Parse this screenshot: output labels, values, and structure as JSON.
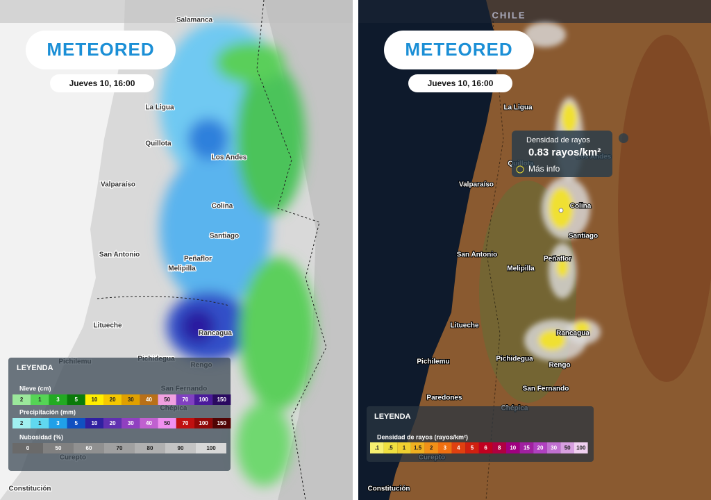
{
  "left": {
    "logo": "METEORED",
    "date": "Jueves 10, 16:00",
    "places": [
      "Salamanca",
      "La Ligua",
      "Quillota",
      "Los Andes",
      "Valparaíso",
      "Colina",
      "Santiago",
      "San Antonio",
      "Peñaflor",
      "Melipilla",
      "Litueche",
      "Rancagua",
      "Pichilemu",
      "Pichidegua",
      "Rengo",
      "San Fernando",
      "Chépica",
      "Curepto",
      "Constitución"
    ],
    "legend": {
      "title": "LEYENDA",
      "groups": [
        {
          "name": "Nieve (cm)",
          "items": [
            {
              "label": "2",
              "color": "#9be89b"
            },
            {
              "label": "1",
              "color": "#55d455"
            },
            {
              "label": "3",
              "color": "#22aa22"
            },
            {
              "label": "5",
              "color": "#0a7a0a"
            },
            {
              "label": "10",
              "color": "#ffee00"
            },
            {
              "label": "20",
              "color": "#f5c800"
            },
            {
              "label": "30",
              "color": "#e0a000"
            },
            {
              "label": "40",
              "color": "#b87018"
            },
            {
              "label": "50",
              "color": "#f0a0e0"
            },
            {
              "label": "70",
              "color": "#8040c0"
            },
            {
              "label": "100",
              "color": "#4a1a9a"
            },
            {
              "label": "150",
              "color": "#2a0a60"
            }
          ]
        },
        {
          "name": "Precipitación (mm)",
          "items": [
            {
              "label": "2",
              "color": "#a0f0f0"
            },
            {
              "label": "1",
              "color": "#60d8f0"
            },
            {
              "label": "3",
              "color": "#20a0e8"
            },
            {
              "label": "5",
              "color": "#1050c0"
            },
            {
              "label": "10",
              "color": "#3020a0"
            },
            {
              "label": "20",
              "color": "#6030b0"
            },
            {
              "label": "30",
              "color": "#9040c0"
            },
            {
              "label": "40",
              "color": "#c060d0"
            },
            {
              "label": "50",
              "color": "#f090f0"
            },
            {
              "label": "70",
              "color": "#c01010"
            },
            {
              "label": "100",
              "color": "#900808"
            },
            {
              "label": "150",
              "color": "#500404"
            }
          ]
        },
        {
          "name": "Nubosidad (%)",
          "items": [
            {
              "label": "0",
              "color": "#6a6a6a"
            },
            {
              "label": "50",
              "color": "#808080"
            },
            {
              "label": "60",
              "color": "#909090"
            },
            {
              "label": "70",
              "color": "#a0a0a0"
            },
            {
              "label": "80",
              "color": "#b0b0b0"
            },
            {
              "label": "90",
              "color": "#c4c4c4"
            },
            {
              "label": "100",
              "color": "#d8d8d8"
            }
          ]
        }
      ]
    }
  },
  "right": {
    "country": "CHILE",
    "logo": "METEORED",
    "date": "Jueves 10, 16:00",
    "places": [
      "La Ligua",
      "Quillota",
      "Los Andes",
      "Valparaíso",
      "Colina",
      "Santiago",
      "San Antonio",
      "Melipilla",
      "Peñaflor",
      "Litueche",
      "Rancagua",
      "Pichilemu",
      "Pichidegua",
      "Rengo",
      "San Fernando",
      "Paredones",
      "Chépica",
      "Curepto",
      "Constitución"
    ],
    "tooltip": {
      "title": "Densidad de rayos",
      "value": "0.83 rayos/km²",
      "link": "Más info"
    },
    "legend": {
      "title": "LEYENDA",
      "name": "Densidad de rayos (rayos/km²)",
      "items": [
        {
          "label": ".1",
          "color": "#f8f070"
        },
        {
          "label": ".5",
          "color": "#f0e040"
        },
        {
          "label": "1",
          "color": "#f0d030"
        },
        {
          "label": "1.5",
          "color": "#f0b020"
        },
        {
          "label": "2",
          "color": "#f09018"
        },
        {
          "label": "3",
          "color": "#f07010"
        },
        {
          "label": "4",
          "color": "#e04010"
        },
        {
          "label": "5",
          "color": "#d02010"
        },
        {
          "label": "6",
          "color": "#c00020"
        },
        {
          "label": "8",
          "color": "#b00040"
        },
        {
          "label": "10",
          "color": "#a00080"
        },
        {
          "label": "15",
          "color": "#a020a0"
        },
        {
          "label": "20",
          "color": "#b040c0"
        },
        {
          "label": "30",
          "color": "#c070d0"
        },
        {
          "label": "50",
          "color": "#d8a0e0"
        },
        {
          "label": "100",
          "color": "#f0d0f0"
        }
      ]
    }
  }
}
